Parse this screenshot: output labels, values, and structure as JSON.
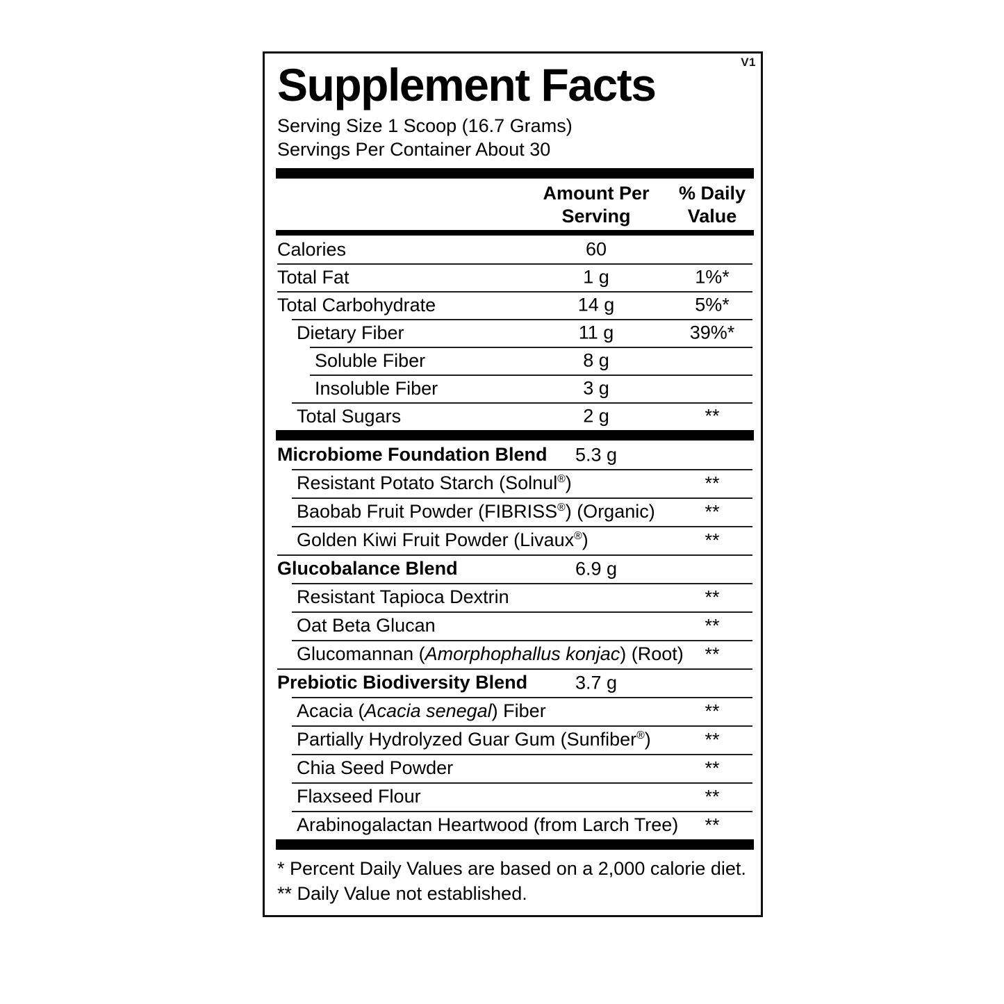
{
  "panel": {
    "version_tag": "V1",
    "title": "Supplement Facts",
    "serving": {
      "size": "Serving Size 1 Scoop (16.7 Grams)",
      "per_container": "Servings Per Container About 30"
    },
    "columns": {
      "amount_header_line1": "Amount Per",
      "amount_header_line2": "Serving",
      "dv_header_line1": "% Daily",
      "dv_header_line2": "Value"
    },
    "main_rows": [
      {
        "name_parts": [
          [
            "Calories",
            "n"
          ]
        ],
        "amount": "60",
        "dv": "",
        "indent": 0,
        "bold": false
      },
      {
        "name_parts": [
          [
            "Total Fat",
            "n"
          ]
        ],
        "amount": "1 g",
        "dv": "1%*",
        "indent": 0,
        "bold": false
      },
      {
        "name_parts": [
          [
            "Total Carbohydrate",
            "n"
          ]
        ],
        "amount": "14 g",
        "dv": "5%*",
        "indent": 0,
        "bold": false
      },
      {
        "name_parts": [
          [
            "Dietary Fiber",
            "n"
          ]
        ],
        "amount": "11 g",
        "dv": "39%*",
        "indent": 1,
        "bold": false
      },
      {
        "name_parts": [
          [
            "Soluble Fiber",
            "n"
          ]
        ],
        "amount": "8 g",
        "dv": "",
        "indent": 2,
        "bold": false
      },
      {
        "name_parts": [
          [
            "Insoluble Fiber",
            "n"
          ]
        ],
        "amount": "3 g",
        "dv": "",
        "indent": 2,
        "bold": false
      },
      {
        "name_parts": [
          [
            "Total Sugars",
            "n"
          ]
        ],
        "amount": "2 g",
        "dv": "**",
        "indent": 1,
        "bold": false
      }
    ],
    "blend_rows": [
      {
        "name_parts": [
          [
            "Microbiome Foundation Blend",
            "n"
          ]
        ],
        "amount": "5.3 g",
        "dv": "",
        "indent": 0,
        "bold": true
      },
      {
        "name_parts": [
          [
            "Resistant Potato Starch (Solnul",
            "n"
          ],
          [
            "®",
            "s"
          ],
          [
            ")",
            "n"
          ]
        ],
        "amount": "",
        "dv": "**",
        "indent": 1,
        "bold": false
      },
      {
        "name_parts": [
          [
            "Baobab Fruit Powder (FIBRISS",
            "n"
          ],
          [
            "®",
            "s"
          ],
          [
            ") (Organic)",
            "n"
          ]
        ],
        "amount": "",
        "dv": "**",
        "indent": 1,
        "bold": false
      },
      {
        "name_parts": [
          [
            "Golden Kiwi Fruit Powder (Livaux",
            "n"
          ],
          [
            "®",
            "s"
          ],
          [
            ")",
            "n"
          ]
        ],
        "amount": "",
        "dv": "**",
        "indent": 1,
        "bold": false
      },
      {
        "name_parts": [
          [
            "Glucobalance Blend",
            "n"
          ]
        ],
        "amount": "6.9 g",
        "dv": "",
        "indent": 0,
        "bold": true
      },
      {
        "name_parts": [
          [
            "Resistant Tapioca Dextrin",
            "n"
          ]
        ],
        "amount": "",
        "dv": "**",
        "indent": 1,
        "bold": false
      },
      {
        "name_parts": [
          [
            "Oat Beta Glucan",
            "n"
          ]
        ],
        "amount": "",
        "dv": "**",
        "indent": 1,
        "bold": false
      },
      {
        "name_parts": [
          [
            "Glucomannan (",
            "n"
          ],
          [
            "Amorphophallus konjac",
            "i"
          ],
          [
            ") (Root)",
            "n"
          ]
        ],
        "amount": "",
        "dv": "**",
        "indent": 1,
        "bold": false
      },
      {
        "name_parts": [
          [
            "Prebiotic Biodiversity Blend",
            "n"
          ]
        ],
        "amount": "3.7 g",
        "dv": "",
        "indent": 0,
        "bold": true
      },
      {
        "name_parts": [
          [
            "Acacia (",
            "n"
          ],
          [
            "Acacia senegal",
            "i"
          ],
          [
            ") Fiber",
            "n"
          ]
        ],
        "amount": "",
        "dv": "**",
        "indent": 1,
        "bold": false
      },
      {
        "name_parts": [
          [
            "Partially Hydrolyzed Guar Gum (Sunfiber",
            "n"
          ],
          [
            "®",
            "s"
          ],
          [
            ")",
            "n"
          ]
        ],
        "amount": "",
        "dv": "**",
        "indent": 1,
        "bold": false
      },
      {
        "name_parts": [
          [
            "Chia Seed Powder",
            "n"
          ]
        ],
        "amount": "",
        "dv": "**",
        "indent": 1,
        "bold": false
      },
      {
        "name_parts": [
          [
            "Flaxseed Flour",
            "n"
          ]
        ],
        "amount": "",
        "dv": "**",
        "indent": 1,
        "bold": false
      },
      {
        "name_parts": [
          [
            "Arabinogalactan Heartwood (from Larch Tree)",
            "n"
          ]
        ],
        "amount": "",
        "dv": "**",
        "indent": 1,
        "bold": false
      }
    ],
    "footnotes": {
      "dv_basis": "* Percent Daily Values are based on a 2,000 calorie diet.",
      "dv_not_established": "** Daily Value not established."
    },
    "colors": {
      "ink": "#000000",
      "background": "#ffffff"
    }
  }
}
